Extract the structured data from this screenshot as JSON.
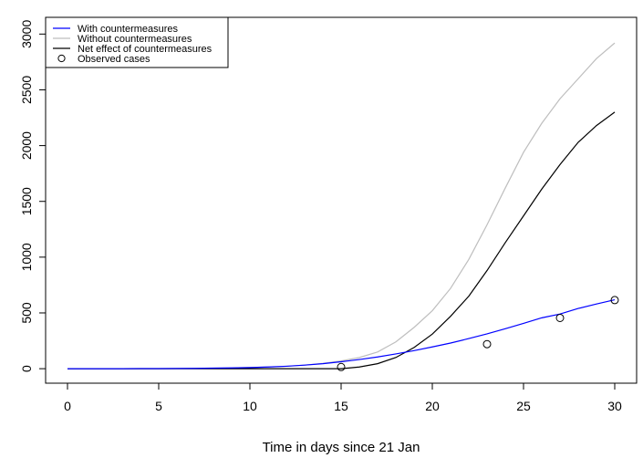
{
  "chart_data": {
    "type": "line",
    "title": "",
    "xlabel": "Time in days since 21 Jan",
    "ylabel": "",
    "xlim": [
      -1.2,
      31.2
    ],
    "ylim": [
      -130,
      3150
    ],
    "xticks": [
      0,
      5,
      10,
      15,
      20,
      25,
      30
    ],
    "yticks": [
      0,
      500,
      1000,
      1500,
      2000,
      2500,
      3000
    ],
    "grid": false,
    "legend_position": "top-left",
    "x": [
      0,
      1,
      2,
      3,
      4,
      5,
      6,
      7,
      8,
      9,
      10,
      11,
      12,
      13,
      14,
      15,
      16,
      17,
      18,
      19,
      20,
      21,
      22,
      23,
      24,
      25,
      26,
      27,
      28,
      29,
      30
    ],
    "series": [
      {
        "name": "With countermeasures",
        "color": "#0000ff",
        "values": [
          0,
          0,
          0,
          0,
          1,
          1,
          2,
          3,
          5,
          7,
          10,
          15,
          22,
          32,
          45,
          62,
          82,
          105,
          132,
          162,
          195,
          230,
          270,
          312,
          358,
          406,
          456,
          490,
          540,
          580,
          618
        ]
      },
      {
        "name": "Without countermeasures",
        "color": "#bebebe",
        "values": [
          0,
          0,
          0,
          0,
          1,
          1,
          2,
          3,
          5,
          7,
          10,
          15,
          22,
          32,
          48,
          70,
          100,
          150,
          240,
          370,
          520,
          720,
          980,
          1290,
          1620,
          1940,
          2200,
          2420,
          2600,
          2780,
          2920
        ]
      },
      {
        "name": "Net effect of countermeasures",
        "color": "#000000",
        "values": [
          0,
          0,
          0,
          0,
          0,
          0,
          0,
          0,
          0,
          0,
          0,
          0,
          0,
          0,
          0,
          0,
          15,
          45,
          100,
          190,
          310,
          470,
          650,
          880,
          1130,
          1370,
          1610,
          1830,
          2030,
          2180,
          2300
        ]
      }
    ],
    "observed": {
      "name": "Observed cases",
      "x": [
        15,
        23,
        27,
        30
      ],
      "values": [
        15,
        220,
        455,
        615
      ]
    }
  }
}
